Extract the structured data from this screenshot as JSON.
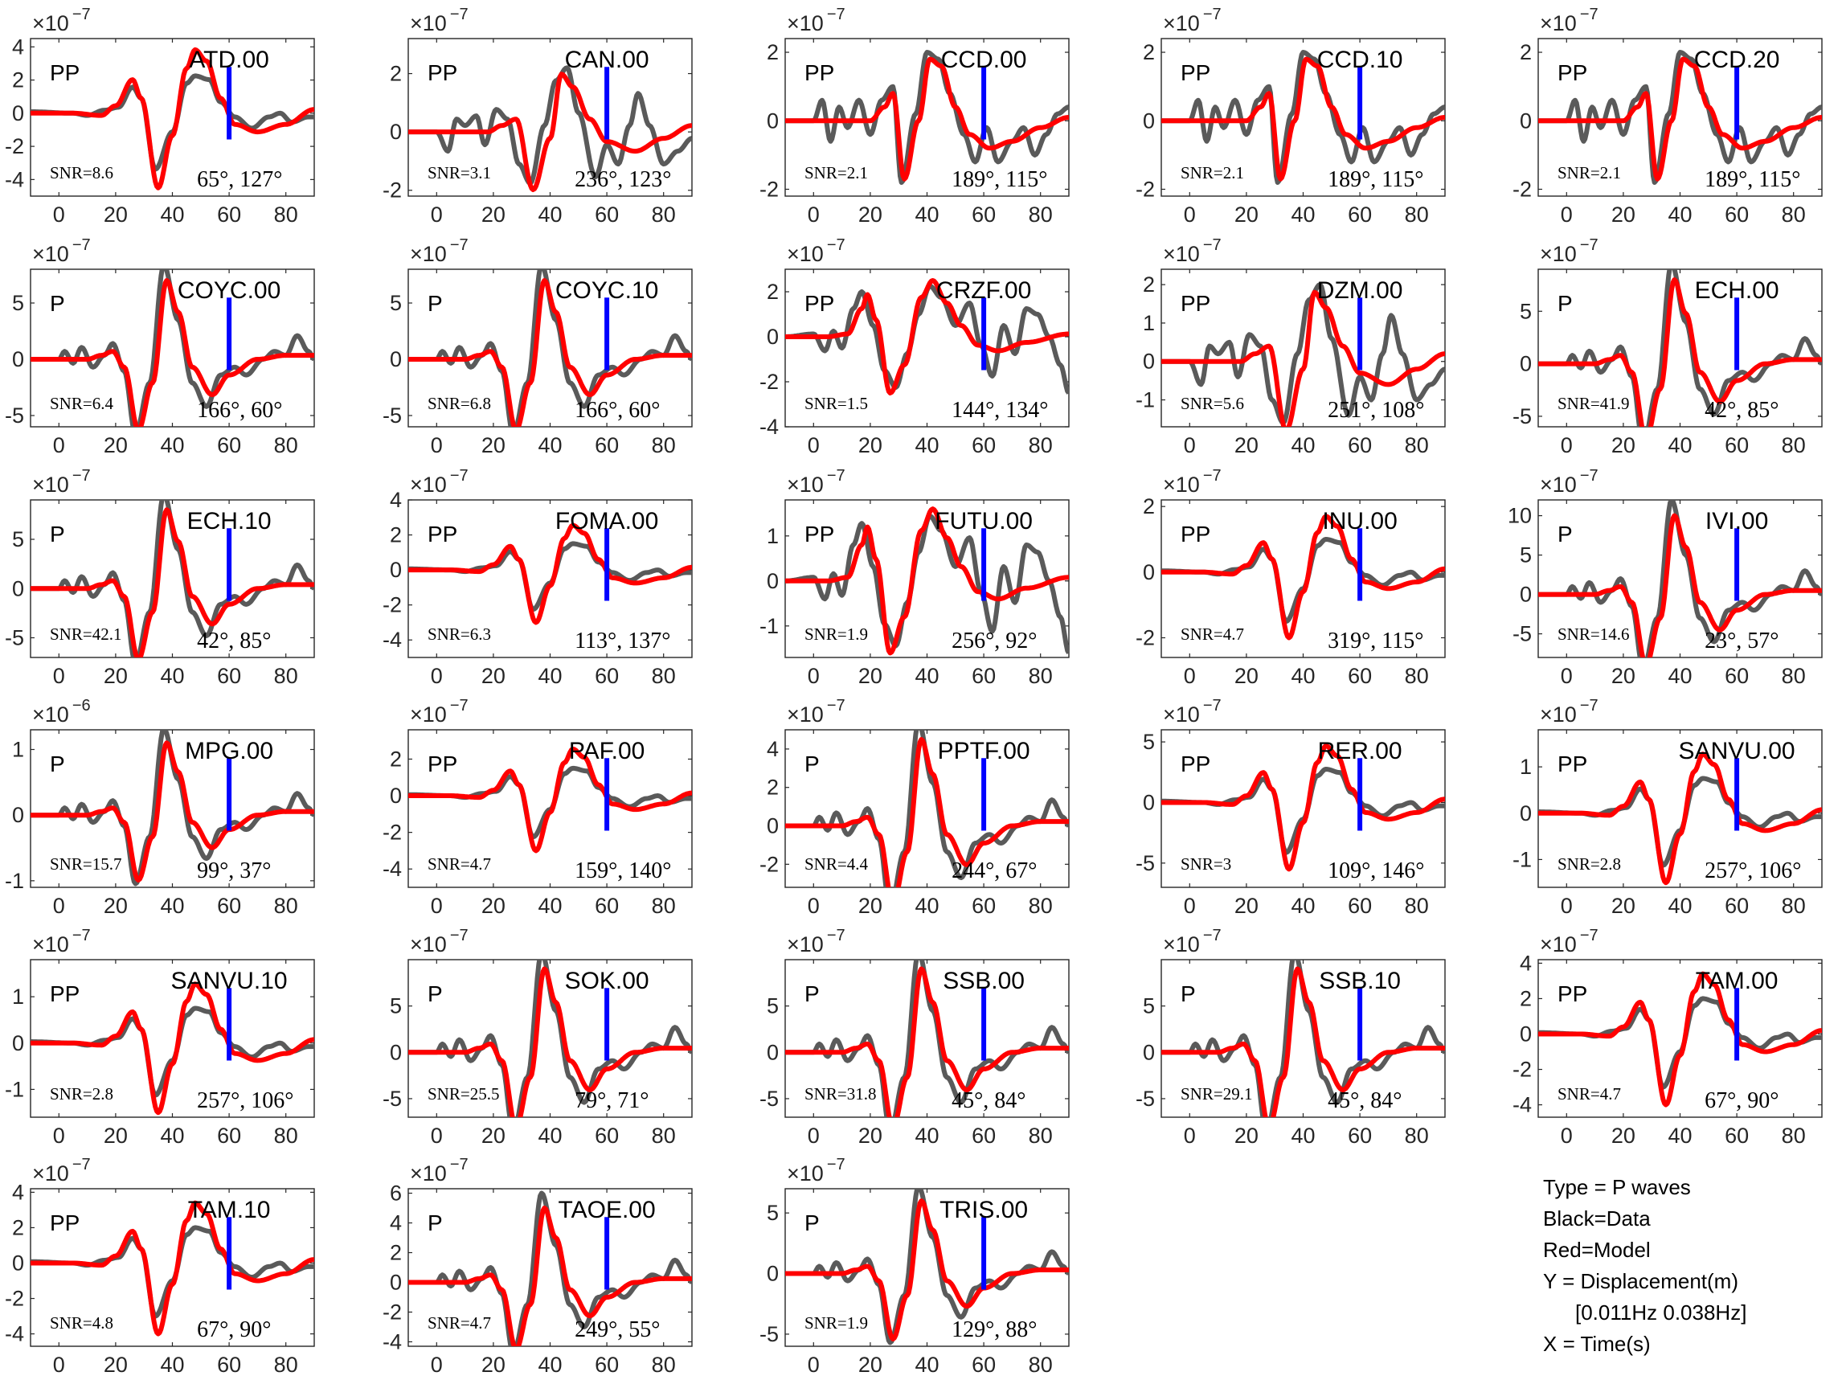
{
  "chart_data": {
    "type": "line",
    "x_ticks": [
      0,
      20,
      40,
      60,
      80
    ],
    "xlim": [
      -10,
      90
    ],
    "marker_x": 60,
    "colors": {
      "data": "#5a5a5a",
      "model": "#ff0000",
      "marker": "#0000ff"
    },
    "series_names": [
      "Data",
      "Model"
    ],
    "panels": [
      {
        "station": "ATD.00",
        "phase": "PP",
        "snr": "SNR=8.6",
        "angles": "65°, 127°",
        "exp": "−7",
        "yticks": [
          4,
          2,
          0,
          -2,
          -4
        ],
        "ylim": [
          -5,
          4.5
        ],
        "amp": 4.5,
        "shape": 0
      },
      {
        "station": "CAN.00",
        "phase": "PP",
        "snr": "SNR=3.1",
        "angles": "236°, 123°",
        "exp": "−7",
        "yticks": [
          2,
          0,
          -2
        ],
        "ylim": [
          -2.2,
          3.2
        ],
        "amp": 2.2,
        "shape": 1
      },
      {
        "station": "CCD.00",
        "phase": "PP",
        "snr": "SNR=2.1",
        "angles": "189°, 115°",
        "exp": "−7",
        "yticks": [
          2,
          0,
          -2
        ],
        "ylim": [
          -2.2,
          2.4
        ],
        "amp": 2.0,
        "shape": 2
      },
      {
        "station": "CCD.10",
        "phase": "PP",
        "snr": "SNR=2.1",
        "angles": "189°, 115°",
        "exp": "−7",
        "yticks": [
          2,
          0,
          -2
        ],
        "ylim": [
          -2.2,
          2.4
        ],
        "amp": 2.0,
        "shape": 2
      },
      {
        "station": "CCD.20",
        "phase": "PP",
        "snr": "SNR=2.1",
        "angles": "189°, 115°",
        "exp": "−7",
        "yticks": [
          2,
          0,
          -2
        ],
        "ylim": [
          -2.2,
          2.4
        ],
        "amp": 2.0,
        "shape": 2
      },
      {
        "station": "COYC.00",
        "phase": "P",
        "snr": "SNR=6.4",
        "angles": "166°, 60°",
        "exp": "−7",
        "yticks": [
          5,
          0,
          -5
        ],
        "ylim": [
          -6,
          8
        ],
        "amp": 7.0,
        "shape": 3
      },
      {
        "station": "COYC.10",
        "phase": "P",
        "snr": "SNR=6.8",
        "angles": "166°, 60°",
        "exp": "−7",
        "yticks": [
          5,
          0,
          -5
        ],
        "ylim": [
          -6,
          8
        ],
        "amp": 7.0,
        "shape": 3
      },
      {
        "station": "CRZF.00",
        "phase": "PP",
        "snr": "SNR=1.5",
        "angles": "144°, 134°",
        "exp": "−7",
        "yticks": [
          2,
          0,
          -2,
          -4
        ],
        "ylim": [
          -4,
          3
        ],
        "amp": 2.5,
        "shape": 4
      },
      {
        "station": "DZM.00",
        "phase": "PP",
        "snr": "SNR=5.6",
        "angles": "251°, 108°",
        "exp": "−7",
        "yticks": [
          2,
          1,
          0,
          -1
        ],
        "ylim": [
          -1.7,
          2.4
        ],
        "amp": 2.0,
        "shape": 1
      },
      {
        "station": "ECH.00",
        "phase": "P",
        "snr": "SNR=41.9",
        "angles": "42°, 85°",
        "exp": "−7",
        "yticks": [
          5,
          0,
          -5
        ],
        "ylim": [
          -6,
          9
        ],
        "amp": 8.0,
        "shape": 3
      },
      {
        "station": "ECH.10",
        "phase": "P",
        "snr": "SNR=42.1",
        "angles": "42°, 85°",
        "exp": "−7",
        "yticks": [
          5,
          0,
          -5
        ],
        "ylim": [
          -7,
          9
        ],
        "amp": 8.0,
        "shape": 3
      },
      {
        "station": "FOMA.00",
        "phase": "PP",
        "snr": "SNR=6.3",
        "angles": "113°, 137°",
        "exp": "−7",
        "yticks": [
          4,
          2,
          0,
          -2,
          -4
        ],
        "ylim": [
          -5,
          4
        ],
        "amp": 3.0,
        "shape": 0
      },
      {
        "station": "FUTU.00",
        "phase": "PP",
        "snr": "SNR=1.9",
        "angles": "256°, 92°",
        "exp": "−7",
        "yticks": [
          1,
          0,
          -1
        ],
        "ylim": [
          -1.7,
          1.8
        ],
        "amp": 1.6,
        "shape": 4
      },
      {
        "station": "INU.00",
        "phase": "PP",
        "snr": "SNR=4.7",
        "angles": "319°, 115°",
        "exp": "−7",
        "yticks": [
          2,
          0,
          -2
        ],
        "ylim": [
          -2.6,
          2.2
        ],
        "amp": 2.0,
        "shape": 0
      },
      {
        "station": "IVI.00",
        "phase": "P",
        "snr": "SNR=14.6",
        "angles": "23°, 57°",
        "exp": "−7",
        "yticks": [
          10,
          5,
          0,
          -5
        ],
        "ylim": [
          -8,
          12
        ],
        "amp": 10.0,
        "shape": 3
      },
      {
        "station": "MPG.00",
        "phase": "P",
        "snr": "SNR=15.7",
        "angles": "99°, 37°",
        "exp": "−6",
        "yticks": [
          1,
          0,
          -1
        ],
        "ylim": [
          -1.1,
          1.3
        ],
        "amp": 1.1,
        "shape": 3
      },
      {
        "station": "PAF.00",
        "phase": "PP",
        "snr": "SNR=4.7",
        "angles": "159°, 140°",
        "exp": "−7",
        "yticks": [
          2,
          0,
          -2,
          -4
        ],
        "ylim": [
          -5,
          3.6
        ],
        "amp": 3.0,
        "shape": 0
      },
      {
        "station": "PPTF.00",
        "phase": "P",
        "snr": "SNR=4.4",
        "angles": "244°, 67°",
        "exp": "−7",
        "yticks": [
          4,
          2,
          0,
          -2
        ],
        "ylim": [
          -3.2,
          5
        ],
        "amp": 4.5,
        "shape": 3
      },
      {
        "station": "RER.00",
        "phase": "PP",
        "snr": "SNR=3",
        "angles": "109°, 146°",
        "exp": "−7",
        "yticks": [
          5,
          0,
          -5
        ],
        "ylim": [
          -7,
          6
        ],
        "amp": 5.5,
        "shape": 0
      },
      {
        "station": "SANVU.00",
        "phase": "PP",
        "snr": "SNR=2.8",
        "angles": "257°, 106°",
        "exp": "−7",
        "yticks": [
          1,
          0,
          -1
        ],
        "ylim": [
          -1.6,
          1.8
        ],
        "amp": 1.5,
        "shape": 0
      },
      {
        "station": "SANVU.10",
        "phase": "PP",
        "snr": "SNR=2.8",
        "angles": "257°, 106°",
        "exp": "−7",
        "yticks": [
          1,
          0,
          -1
        ],
        "ylim": [
          -1.6,
          1.8
        ],
        "amp": 1.5,
        "shape": 0
      },
      {
        "station": "SOK.00",
        "phase": "P",
        "snr": "SNR=25.5",
        "angles": "79°, 71°",
        "exp": "−7",
        "yticks": [
          5,
          0,
          -5
        ],
        "ylim": [
          -7,
          10
        ],
        "amp": 9.0,
        "shape": 3
      },
      {
        "station": "SSB.00",
        "phase": "P",
        "snr": "SNR=31.8",
        "angles": "45°, 84°",
        "exp": "−7",
        "yticks": [
          5,
          0,
          -5
        ],
        "ylim": [
          -7,
          10
        ],
        "amp": 9.0,
        "shape": 3
      },
      {
        "station": "SSB.10",
        "phase": "P",
        "snr": "SNR=29.1",
        "angles": "45°, 84°",
        "exp": "−7",
        "yticks": [
          5,
          0,
          -5
        ],
        "ylim": [
          -7,
          10
        ],
        "amp": 9.0,
        "shape": 3
      },
      {
        "station": "TAM.00",
        "phase": "PP",
        "snr": "SNR=4.7",
        "angles": "67°, 90°",
        "exp": "−7",
        "yticks": [
          4,
          2,
          0,
          -2,
          -4
        ],
        "ylim": [
          -4.7,
          4.2
        ],
        "amp": 4.0,
        "shape": 0
      },
      {
        "station": "TAM.10",
        "phase": "PP",
        "snr": "SNR=4.8",
        "angles": "67°, 90°",
        "exp": "−7",
        "yticks": [
          4,
          2,
          0,
          -2,
          -4
        ],
        "ylim": [
          -4.7,
          4.2
        ],
        "amp": 4.0,
        "shape": 0
      },
      {
        "station": "TAOE.00",
        "phase": "P",
        "snr": "SNR=4.7",
        "angles": "249°, 55°",
        "exp": "−7",
        "yticks": [
          6,
          4,
          2,
          0,
          -2,
          -4
        ],
        "ylim": [
          -4.3,
          6.3
        ],
        "amp": 5.0,
        "shape": 3
      },
      {
        "station": "TRIS.00",
        "phase": "P",
        "snr": "SNR=1.9",
        "angles": "129°, 88°",
        "exp": "−7",
        "yticks": [
          5,
          0,
          -5
        ],
        "ylim": [
          -6,
          7
        ],
        "amp": 6.0,
        "shape": 3
      }
    ]
  },
  "legend": {
    "line1": "Type = P waves",
    "line2": "Black=Data",
    "line3": "Red=Model",
    "line4": "Y = Displacement(m)",
    "line5": "[0.011Hz 0.038Hz]",
    "line6": "X = Time(s)"
  }
}
